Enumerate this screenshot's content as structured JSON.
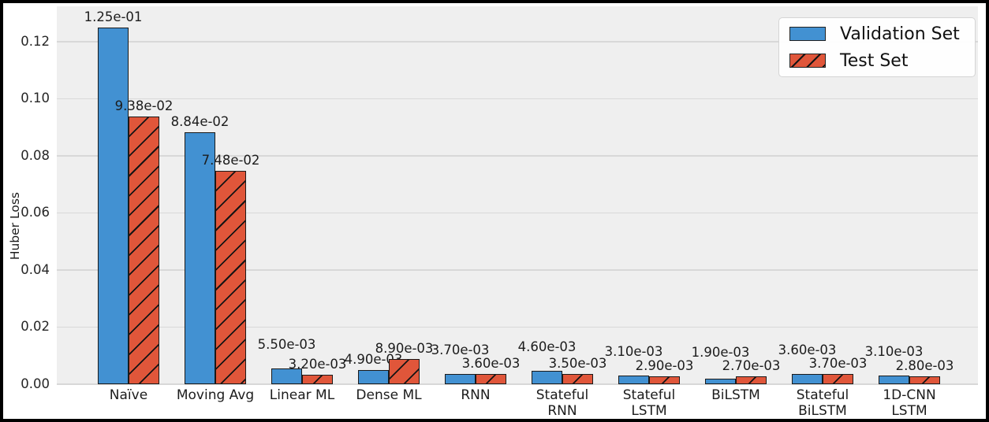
{
  "figure": {
    "background": "#ffffff",
    "plot_background": "#efefef",
    "grid_color": "#d8d8d8",
    "bar_edge_color": "#1a1a1a",
    "frame_color": "#000000"
  },
  "chart_data": {
    "type": "bar",
    "title": "",
    "xlabel": "",
    "ylabel": "Huber Loss",
    "categories": [
      "Naïve",
      "Moving Avg",
      "Linear ML",
      "Dense ML",
      "RNN",
      "Stateful\nRNN",
      "Stateful\nLSTM",
      "BiLSTM",
      "Stateful\nBiLSTM",
      "1D-CNN\nLSTM"
    ],
    "series": [
      {
        "name": "Validation Set",
        "color": "#4291D2",
        "hatch": false,
        "values": [
          0.125,
          0.0884,
          0.0055,
          0.0049,
          0.0037,
          0.0046,
          0.0031,
          0.0019,
          0.0036,
          0.0031
        ],
        "value_labels": [
          "1.25e-01",
          "8.84e-02",
          "5.50e-03",
          "4.90e-03",
          "3.70e-03",
          "4.60e-03",
          "3.10e-03",
          "1.90e-03",
          "3.60e-03",
          "3.10e-03"
        ]
      },
      {
        "name": "Test Set",
        "color": "#E0563A",
        "hatch": true,
        "values": [
          0.0938,
          0.0748,
          0.0032,
          0.0089,
          0.0036,
          0.0035,
          0.0029,
          0.0027,
          0.0037,
          0.0028
        ],
        "value_labels": [
          "9.38e-02",
          "7.48e-02",
          "3.20e-03",
          "8.90e-03",
          "3.60e-03",
          "3.50e-03",
          "2.90e-03",
          "2.70e-03",
          "3.70e-03",
          "2.80e-03"
        ]
      }
    ],
    "yticks": {
      "values": [
        0.0,
        0.02,
        0.04,
        0.06,
        0.08,
        0.1,
        0.12
      ],
      "labels": [
        "0.00",
        "0.02",
        "0.04",
        "0.06",
        "0.08",
        "0.10",
        "0.12"
      ]
    },
    "ylim": [
      0,
      0.1324
    ],
    "grid": "horizontal",
    "legend": {
      "position": "upper-right",
      "entries": [
        "Validation Set",
        "Test Set"
      ]
    }
  }
}
